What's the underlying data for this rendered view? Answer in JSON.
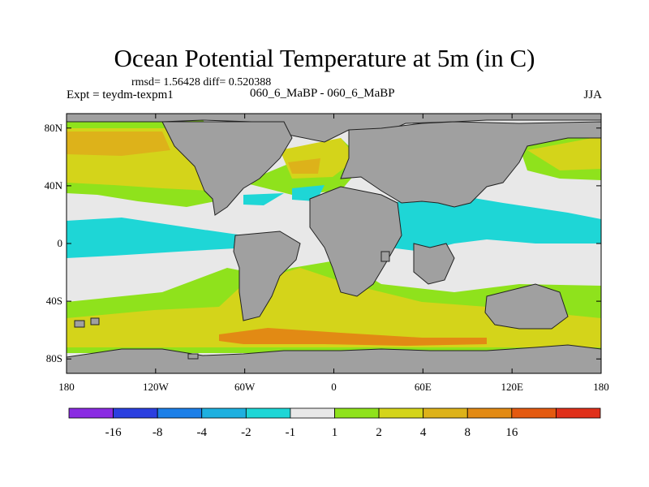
{
  "title": "Ocean Potential Temperature at 5m (in C)",
  "stats": "rmsd= 1.56428 diff= 0.520388",
  "expt": "Expt = teydm-texpm1",
  "case": "060_6_MaBP - 060_6_MaBP",
  "season": "JJA",
  "map": {
    "projection": "cylindrical equidistant",
    "lon_range": [
      -180,
      180
    ],
    "lat_range": [
      -90,
      90
    ],
    "x_ticks": [
      {
        "value": -180,
        "label": "180"
      },
      {
        "value": -120,
        "label": "120W"
      },
      {
        "value": -60,
        "label": "60W"
      },
      {
        "value": 0,
        "label": "0"
      },
      {
        "value": 60,
        "label": "60E"
      },
      {
        "value": 120,
        "label": "120E"
      },
      {
        "value": 180,
        "label": "180"
      }
    ],
    "y_ticks": [
      {
        "value": 80,
        "label": "80N"
      },
      {
        "value": 40,
        "label": "40N"
      },
      {
        "value": 0,
        "label": "0"
      },
      {
        "value": -40,
        "label": "40S"
      },
      {
        "value": -80,
        "label": "80S"
      }
    ],
    "land_color": "#a0a0a0",
    "ocean_background_color": "#e8e8e8"
  },
  "colorbar": {
    "colors": [
      "#8a2be2",
      "#2b3fe0",
      "#1c7fe8",
      "#1eb0e0",
      "#1ed6d6",
      "#e8e8e8",
      "#8fe21c",
      "#d4d41a",
      "#ddb21a",
      "#e28a14",
      "#e45a10",
      "#e0301a"
    ],
    "labels": [
      "-16",
      "-8",
      "-4",
      "-2",
      "-1",
      "1",
      "2",
      "4",
      "8",
      "16"
    ]
  }
}
